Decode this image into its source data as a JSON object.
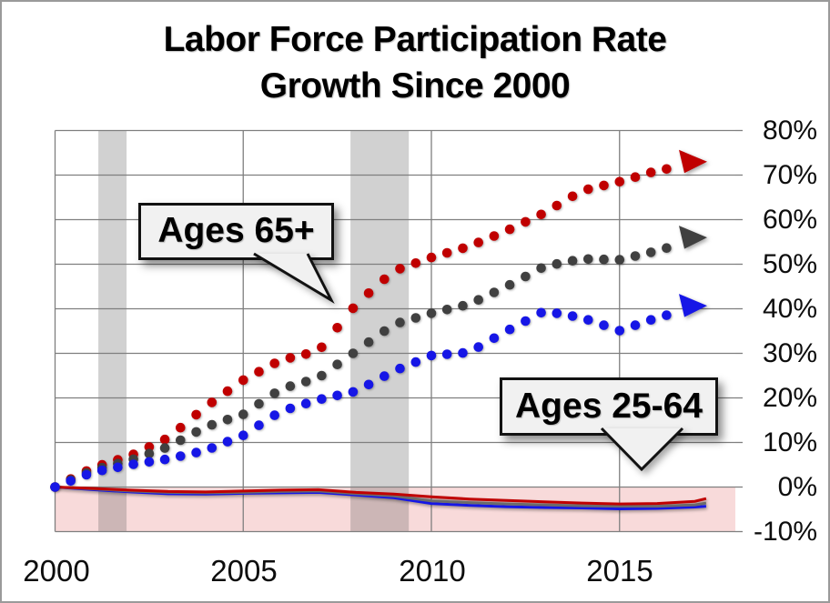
{
  "figure": {
    "title_line1": "Labor Force Participation Rate",
    "title_line2": "Growth Since 2000"
  },
  "y_axis": {
    "labels": [
      "80%",
      "70%",
      "60%",
      "50%",
      "40%",
      "30%",
      "20%",
      "10%",
      "0%",
      "-10%"
    ]
  },
  "x_axis": {
    "labels": [
      "2000",
      "2005",
      "2010",
      "2015"
    ]
  },
  "callouts": {
    "ages65": "Ages 65+",
    "ages2564": "Ages 25-64"
  },
  "colors": {
    "red": "#c00000",
    "dark_gray": "#404040",
    "blue": "#1616e6",
    "solid_gray": "#6b6b6b",
    "pink_region": "#f8dada",
    "recession_band": "rgba(90,90,90,0.28)",
    "gridline": "#7f7f7f"
  },
  "chart_data": {
    "type": "line",
    "title": "Labor Force Participation Rate Growth Since 2000",
    "x": [
      2000,
      2001,
      2002,
      2003,
      2004,
      2005,
      2006,
      2007,
      2008,
      2009,
      2010,
      2011,
      2012,
      2013,
      2014,
      2015,
      2016,
      2017,
      2017.3
    ],
    "x_tick_years": [
      2000,
      2005,
      2010,
      2015
    ],
    "y_ticks_percent": [
      80,
      70,
      60,
      50,
      40,
      30,
      20,
      10,
      0,
      -10
    ],
    "ylim": [
      -10,
      80
    ],
    "xlim": [
      2000,
      2018.1
    ],
    "grid": true,
    "legend_position": "none",
    "annotations": [
      "Ages 65+ points to the three dotted rising series",
      "Ages 25-64 points to the three flat solid series near 0%"
    ],
    "shaded_regions": {
      "recessions_x": [
        [
          2001.15,
          2001.9
        ],
        [
          2007.85,
          2009.4
        ]
      ],
      "negative_y_band": [
        -10,
        0
      ]
    },
    "series": [
      {
        "name": "Ages 65+ (red dotted)",
        "style": "dotted",
        "color": "#c00000",
        "end_marker": "arrow",
        "values": [
          0,
          4.3,
          7,
          11,
          18,
          24,
          28.5,
          30.5,
          41,
          48.5,
          51.5,
          54,
          57.5,
          61.5,
          66.5,
          68.5,
          71,
          72.5,
          73
        ]
      },
      {
        "name": "Ages 65+ (gray dotted)",
        "style": "dotted",
        "color": "#404040",
        "end_marker": "arrow",
        "values": [
          0,
          3.8,
          6,
          9,
          13.5,
          16.3,
          22,
          24.5,
          30.5,
          36.5,
          39,
          41,
          45,
          49.5,
          51.2,
          51,
          53,
          55.5,
          56
        ]
      },
      {
        "name": "Ages 65+ (blue dotted)",
        "style": "dotted",
        "color": "#1616e6",
        "end_marker": "arrow",
        "values": [
          0,
          3.3,
          5,
          6.3,
          8.2,
          11.6,
          17,
          19.6,
          21.5,
          26,
          29.5,
          30.2,
          35,
          39.5,
          38,
          35.1,
          38,
          40.2,
          40.7
        ]
      },
      {
        "name": "Ages 25-64 (red solid)",
        "style": "solid",
        "color": "#c00000",
        "end_marker": "none",
        "values": [
          0,
          -0.3,
          -0.7,
          -1,
          -1.1,
          -0.9,
          -0.7,
          -0.6,
          -1.2,
          -1.6,
          -2.2,
          -2.7,
          -3,
          -3.3,
          -3.6,
          -3.8,
          -3.7,
          -3.2,
          -2.6
        ]
      },
      {
        "name": "Ages 25-64 (gray solid)",
        "style": "solid",
        "color": "#6b6b6b",
        "end_marker": "none",
        "values": [
          0,
          -0.4,
          -0.9,
          -1.2,
          -1.3,
          -1.2,
          -1,
          -0.9,
          -1.5,
          -2,
          -3.1,
          -3.5,
          -3.8,
          -4,
          -4.2,
          -4.3,
          -4.3,
          -4,
          -3.6
        ]
      },
      {
        "name": "Ages 25-64 (blue solid)",
        "style": "solid",
        "color": "#1616e6",
        "end_marker": "none",
        "values": [
          0,
          -0.6,
          -1.1,
          -1.5,
          -1.6,
          -1.4,
          -1.3,
          -1.2,
          -1.8,
          -2.4,
          -3.7,
          -4.1,
          -4.4,
          -4.6,
          -4.7,
          -4.9,
          -4.8,
          -4.5,
          -4.3
        ]
      }
    ]
  }
}
